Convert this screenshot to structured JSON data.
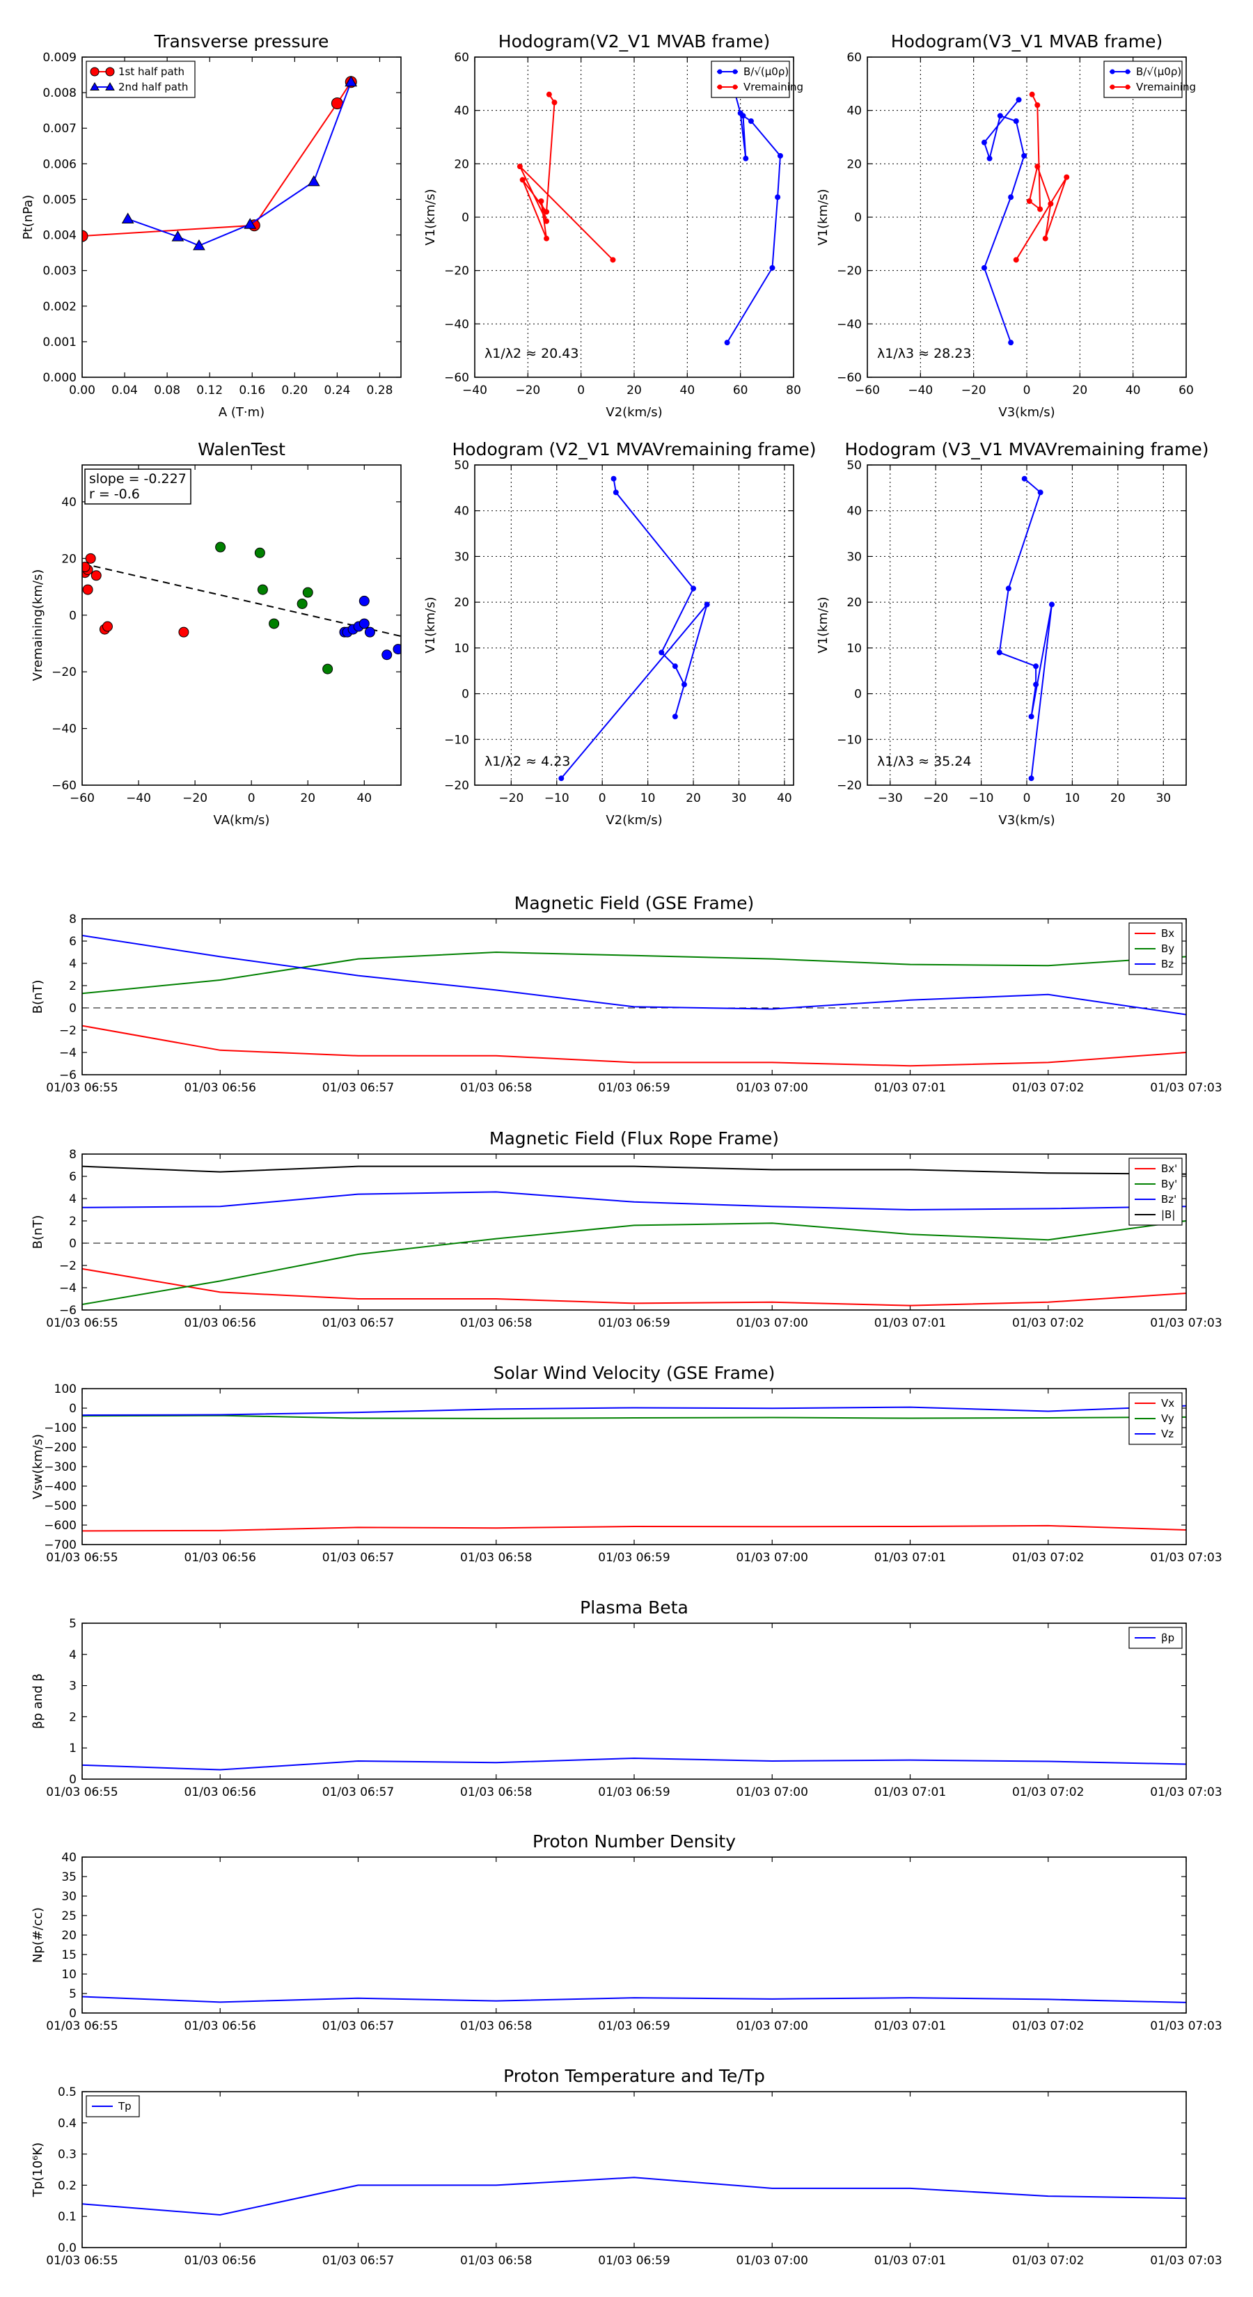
{
  "chart_data": [
    {
      "type": "scatter",
      "title": "Transverse pressure",
      "xlabel": "A (T·m)",
      "ylabel": "Pt(nPa)",
      "xlim": [
        0,
        0.3
      ],
      "ylim": [
        0,
        0.009
      ],
      "xticks": [
        0.0,
        0.04,
        0.08,
        0.12,
        0.16,
        0.2,
        0.24,
        0.28
      ],
      "yticks": [
        0.0,
        0.001,
        0.002,
        0.003,
        0.004,
        0.005,
        0.006,
        0.007,
        0.008,
        0.009
      ],
      "xtick_decimals": 2,
      "ytick_decimals": 3,
      "grid": false,
      "legend_position": "top-left",
      "series": [
        {
          "name": "1st half path",
          "color": "#ff0000",
          "marker": "circle",
          "x": [
            0.0,
            0.162,
            0.24,
            0.253
          ],
          "y": [
            0.00397,
            0.00427,
            0.0077,
            0.0083
          ]
        },
        {
          "name": "2nd half path",
          "color": "#0000ff",
          "marker": "triangle",
          "x": [
            0.253,
            0.218,
            0.158,
            0.11,
            0.09,
            0.043
          ],
          "y": [
            0.0083,
            0.0055,
            0.0043,
            0.0037,
            0.00395,
            0.00445
          ]
        }
      ]
    },
    {
      "type": "line",
      "title": "Hodogram(V2_V1 MVAB frame)",
      "xlabel": "V2(km/s)",
      "ylabel": "V1(km/s)",
      "xlim": [
        -40,
        80
      ],
      "ylim": [
        -60,
        60
      ],
      "xticks": [
        -40,
        -20,
        0,
        20,
        40,
        60,
        80
      ],
      "yticks": [
        -60,
        -40,
        -20,
        0,
        20,
        40,
        60
      ],
      "grid": true,
      "legend_position": "top-right",
      "annotation": "λ1/λ2 ≈ 20.43",
      "series": [
        {
          "name": "B/√(μ0ρ)",
          "color": "#0000ff",
          "marker": "dot",
          "x": [
            55,
            72,
            74,
            75,
            64,
            61,
            62,
            60,
            57
          ],
          "y": [
            -47,
            -19,
            7.5,
            23,
            36,
            38,
            22,
            39,
            50
          ]
        },
        {
          "name": "Vremaining",
          "color": "#ff0000",
          "marker": "dot",
          "x": [
            12,
            -23,
            -13,
            -15,
            -13,
            -22,
            -13,
            -10,
            -12
          ],
          "y": [
            -16,
            19,
            -1.5,
            6,
            -8,
            14,
            2,
            43,
            46
          ]
        }
      ]
    },
    {
      "type": "line",
      "title": "Hodogram(V3_V1 MVAB frame)",
      "xlabel": "V3(km/s)",
      "ylabel": "V1(km/s)",
      "xlim": [
        -60,
        60
      ],
      "ylim": [
        -60,
        60
      ],
      "xticks": [
        -60,
        -40,
        -20,
        0,
        20,
        40,
        60
      ],
      "yticks": [
        -60,
        -40,
        -20,
        0,
        20,
        40,
        60
      ],
      "grid": true,
      "legend_position": "top-right",
      "annotation": "λ1/λ3 ≈ 28.23",
      "series": [
        {
          "name": "B/√(μ0ρ)",
          "color": "#0000ff",
          "marker": "dot",
          "x": [
            -6,
            -16,
            -6,
            -1,
            -4,
            -10,
            -14,
            -16,
            -3
          ],
          "y": [
            -47,
            -19,
            7.5,
            23,
            36,
            38,
            22,
            28,
            44
          ]
        },
        {
          "name": "Vremaining",
          "color": "#ff0000",
          "marker": "dot",
          "x": [
            -4,
            15,
            7,
            9,
            4,
            1,
            5,
            4,
            2
          ],
          "y": [
            -16,
            15,
            -8,
            5,
            19,
            6,
            3,
            42,
            46
          ]
        }
      ]
    },
    {
      "type": "scatter",
      "title": "WalenTest",
      "xlabel": "VA(km/s)",
      "ylabel": "Vremaining(km/s)",
      "xlim": [
        -60,
        53
      ],
      "ylim": [
        -60,
        53
      ],
      "xticks": [
        -60,
        -40,
        -20,
        0,
        20,
        40
      ],
      "yticks": [
        -60,
        -40,
        -20,
        0,
        20,
        40
      ],
      "grid": false,
      "annotation_lines": [
        "slope = -0.227",
        "r = -0.6"
      ],
      "fit_line": {
        "slope": -0.227,
        "intercept": 4.6
      },
      "series": [
        {
          "name": "",
          "color": "#ff0000",
          "x": [
            -59,
            -58,
            -59,
            -57,
            -55,
            -52,
            -51,
            -24,
            -58
          ],
          "y": [
            15,
            16,
            17,
            20,
            14,
            -5,
            -4,
            -6,
            9
          ]
        },
        {
          "name": "",
          "color": "#008000",
          "x": [
            -11,
            3,
            4,
            8,
            18,
            20,
            27
          ],
          "y": [
            24,
            22,
            9,
            -3,
            4,
            8,
            -19
          ]
        },
        {
          "name": "",
          "color": "#0000ff",
          "x": [
            33,
            34,
            36,
            38,
            40,
            42,
            40,
            48,
            52
          ],
          "y": [
            -6,
            -6,
            -5,
            -4,
            -3,
            -6,
            5,
            -14,
            -12
          ]
        }
      ]
    },
    {
      "type": "line",
      "title": "Hodogram (V2_V1 MVAVremaining frame)",
      "xlabel": "V2(km/s)",
      "ylabel": "V1(km/s)",
      "xlim": [
        -28,
        42
      ],
      "ylim": [
        -20,
        50
      ],
      "xticks": [
        -20,
        -10,
        0,
        10,
        20,
        30,
        40
      ],
      "yticks": [
        -20,
        -10,
        0,
        10,
        20,
        30,
        40,
        50
      ],
      "grid": true,
      "annotation": "λ1/λ2 ≈ 4.23",
      "series": [
        {
          "name": "",
          "color": "#0000ff",
          "marker": "dot",
          "x": [
            -9,
            23,
            16,
            18,
            16,
            13,
            20,
            3,
            2.5
          ],
          "y": [
            -18.5,
            19.5,
            -5,
            2,
            6,
            9,
            23,
            44,
            47
          ]
        }
      ]
    },
    {
      "type": "line",
      "title": "Hodogram (V3_V1 MVAVremaining frame)",
      "xlabel": "V3(km/s)",
      "ylabel": "V1(km/s)",
      "xlim": [
        -35,
        35
      ],
      "ylim": [
        -20,
        50
      ],
      "xticks": [
        -30,
        -20,
        -10,
        0,
        10,
        20,
        30
      ],
      "yticks": [
        -20,
        -10,
        0,
        10,
        20,
        30,
        40,
        50
      ],
      "grid": true,
      "annotation": "λ1/λ3 ≈ 35.24",
      "series": [
        {
          "name": "",
          "color": "#0000ff",
          "marker": "dot",
          "x": [
            1,
            5.5,
            1,
            2,
            2,
            -6,
            -4,
            3,
            -0.5
          ],
          "y": [
            -18.5,
            19.5,
            -5,
            2,
            6,
            9,
            23,
            44,
            47
          ]
        }
      ]
    },
    {
      "type": "line",
      "title": "Magnetic Field (GSE Frame)",
      "xlabel": "",
      "ylabel": "B(nT)",
      "x": [
        "01/03 06:55",
        "01/03 06:56",
        "01/03 06:57",
        "01/03 06:58",
        "01/03 06:59",
        "01/03 07:00",
        "01/03 07:01",
        "01/03 07:02",
        "01/03 07:03"
      ],
      "ylim": [
        -6,
        8
      ],
      "yticks": [
        -6,
        -4,
        -2,
        0,
        2,
        4,
        6,
        8
      ],
      "zero_line": true,
      "legend_position": "top-right",
      "series": [
        {
          "name": "Bx",
          "color": "#ff0000",
          "values": [
            -1.6,
            -3.8,
            -4.3,
            -4.3,
            -4.9,
            -4.9,
            -5.2,
            -4.9,
            -4.0
          ]
        },
        {
          "name": "By",
          "color": "#008000",
          "values": [
            1.3,
            2.5,
            4.4,
            5.0,
            4.7,
            4.4,
            3.9,
            3.8,
            4.6
          ]
        },
        {
          "name": "Bz",
          "color": "#0000ff",
          "values": [
            6.5,
            4.6,
            2.9,
            1.6,
            0.1,
            -0.1,
            0.7,
            1.2,
            -0.6
          ]
        }
      ]
    },
    {
      "type": "line",
      "title": "Magnetic Field (Flux Rope Frame)",
      "xlabel": "",
      "ylabel": "B(nT)",
      "x": [
        "01/03 06:55",
        "01/03 06:56",
        "01/03 06:57",
        "01/03 06:58",
        "01/03 06:59",
        "01/03 07:00",
        "01/03 07:01",
        "01/03 07:02",
        "01/03 07:03"
      ],
      "ylim": [
        -6,
        8
      ],
      "yticks": [
        -6,
        -4,
        -2,
        0,
        2,
        4,
        6,
        8
      ],
      "zero_line": true,
      "legend_position": "top-right",
      "series": [
        {
          "name": "Bx'",
          "color": "#ff0000",
          "values": [
            -2.3,
            -4.4,
            -5.0,
            -5.0,
            -5.4,
            -5.3,
            -5.6,
            -5.3,
            -4.5
          ]
        },
        {
          "name": "By'",
          "color": "#008000",
          "values": [
            -5.5,
            -3.4,
            -1.0,
            0.4,
            1.6,
            1.8,
            0.8,
            0.3,
            2.0
          ]
        },
        {
          "name": "Bz'",
          "color": "#0000ff",
          "values": [
            3.2,
            3.3,
            4.4,
            4.6,
            3.7,
            3.3,
            3.0,
            3.1,
            3.3
          ]
        },
        {
          "name": "|B|",
          "color": "#000000",
          "values": [
            6.9,
            6.4,
            6.9,
            6.9,
            6.9,
            6.6,
            6.6,
            6.3,
            6.2
          ]
        }
      ]
    },
    {
      "type": "line",
      "title": "Solar Wind Velocity (GSE Frame)",
      "xlabel": "",
      "ylabel": "Vsw(km/s)",
      "x": [
        "01/03 06:55",
        "01/03 06:56",
        "01/03 06:57",
        "01/03 06:58",
        "01/03 06:59",
        "01/03 07:00",
        "01/03 07:01",
        "01/03 07:02",
        "01/03 07:03"
      ],
      "ylim": [
        -700,
        100
      ],
      "yticks": [
        -700,
        -600,
        -500,
        -400,
        -300,
        -200,
        -100,
        0,
        100
      ],
      "legend_position": "top-right",
      "series": [
        {
          "name": "Vx",
          "color": "#ff0000",
          "values": [
            -630,
            -628,
            -612,
            -615,
            -607,
            -608,
            -607,
            -603,
            -625
          ]
        },
        {
          "name": "Vy",
          "color": "#008000",
          "values": [
            -40,
            -38,
            -52,
            -53,
            -50,
            -48,
            -52,
            -50,
            -46
          ]
        },
        {
          "name": "Vz",
          "color": "#0000ff",
          "values": [
            -36,
            -34,
            -22,
            -5,
            2,
            -1,
            5,
            -16,
            12
          ]
        }
      ]
    },
    {
      "type": "line",
      "title": "Plasma Beta",
      "xlabel": "",
      "ylabel": "βp and β",
      "x": [
        "01/03 06:55",
        "01/03 06:56",
        "01/03 06:57",
        "01/03 06:58",
        "01/03 06:59",
        "01/03 07:00",
        "01/03 07:01",
        "01/03 07:02",
        "01/03 07:03"
      ],
      "ylim": [
        0,
        5
      ],
      "yticks": [
        0,
        1,
        2,
        3,
        4,
        5
      ],
      "legend_position": "top-right",
      "series": [
        {
          "name": "βp",
          "color": "#0000ff",
          "values": [
            0.45,
            0.3,
            0.58,
            0.53,
            0.67,
            0.58,
            0.61,
            0.57,
            0.48
          ]
        }
      ]
    },
    {
      "type": "line",
      "title": "Proton Number Density",
      "xlabel": "",
      "ylabel": "Np(#/cc)",
      "x": [
        "01/03 06:55",
        "01/03 06:56",
        "01/03 06:57",
        "01/03 06:58",
        "01/03 06:59",
        "01/03 07:00",
        "01/03 07:01",
        "01/03 07:02",
        "01/03 07:03"
      ],
      "ylim": [
        0,
        40
      ],
      "yticks": [
        0,
        5,
        10,
        15,
        20,
        25,
        30,
        35,
        40
      ],
      "series": [
        {
          "name": "",
          "color": "#0000ff",
          "values": [
            4.2,
            2.8,
            3.8,
            3.1,
            3.9,
            3.6,
            3.9,
            3.5,
            2.7
          ]
        }
      ]
    },
    {
      "type": "line",
      "title": "Proton Temperature and Te/Tp",
      "xlabel": "",
      "ylabel": "Tp(10⁶K)",
      "x": [
        "01/03 06:55",
        "01/03 06:56",
        "01/03 06:57",
        "01/03 06:58",
        "01/03 06:59",
        "01/03 07:00",
        "01/03 07:01",
        "01/03 07:02",
        "01/03 07:03"
      ],
      "ylim": [
        0,
        0.5
      ],
      "yticks": [
        0.0,
        0.1,
        0.2,
        0.3,
        0.4,
        0.5
      ],
      "ytick_decimals": 1,
      "legend_position": "top-left",
      "series": [
        {
          "name": "Tp",
          "color": "#0000ff",
          "values": [
            0.14,
            0.105,
            0.2,
            0.2,
            0.225,
            0.19,
            0.19,
            0.165,
            0.158
          ]
        }
      ]
    }
  ]
}
